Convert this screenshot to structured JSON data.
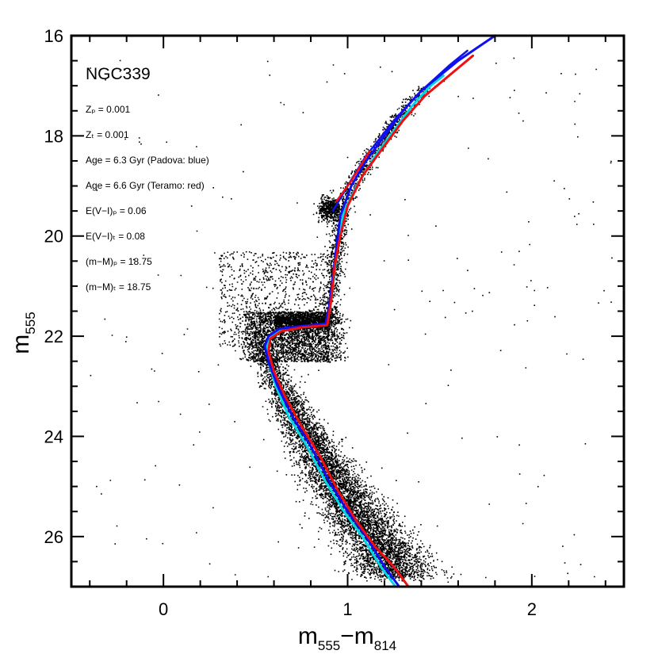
{
  "chart_data": {
    "type": "scatter",
    "title": "NGC339",
    "xlabel": {
      "main1": "m",
      "sub1": "555",
      "sep": "−m",
      "sub2": "814"
    },
    "ylabel": {
      "main": "m",
      "sub": "555"
    },
    "xlim": [
      -0.5,
      2.5
    ],
    "ylim": [
      27.0,
      16.0
    ],
    "y_inverted": true,
    "grid": false,
    "x_ticks": [
      {
        "value": 0,
        "label": "0"
      },
      {
        "value": 1,
        "label": "1"
      },
      {
        "value": 2,
        "label": "2"
      }
    ],
    "y_ticks": [
      {
        "value": 16,
        "label": "16"
      },
      {
        "value": 18,
        "label": "18"
      },
      {
        "value": 20,
        "label": "20"
      },
      {
        "value": 22,
        "label": "22"
      },
      {
        "value": 24,
        "label": "24"
      },
      {
        "value": 26,
        "label": "26"
      }
    ],
    "annotations": [
      "Zₚ = 0.001",
      "Zₜ = 0.001",
      "Age = 6.3 Gyr (Padova: blue)",
      "Age = 6.6 Gyr (Teramo: red)",
      "E(V−I)ₚ = 0.06",
      "E(V−I)ₜ = 0.08",
      "(m−M)ₚ = 18.75",
      "(m−M)ₜ = 18.75"
    ],
    "series": [
      {
        "name": "Padova",
        "color": "#1010ee",
        "points": [
          [
            1.28,
            27.0
          ],
          [
            1.2,
            26.6
          ],
          [
            1.1,
            26.0
          ],
          [
            1.0,
            25.5
          ],
          [
            0.9,
            24.9
          ],
          [
            0.8,
            24.2
          ],
          [
            0.7,
            23.6
          ],
          [
            0.62,
            23.0
          ],
          [
            0.57,
            22.5
          ],
          [
            0.55,
            22.2
          ],
          [
            0.57,
            22.0
          ],
          [
            0.63,
            21.85
          ],
          [
            0.75,
            21.8
          ],
          [
            0.88,
            21.75
          ],
          [
            0.9,
            21.4
          ],
          [
            0.92,
            20.8
          ],
          [
            0.94,
            20.2
          ],
          [
            0.96,
            19.6
          ],
          [
            1.02,
            19.0
          ],
          [
            1.1,
            18.5
          ],
          [
            1.2,
            18.0
          ],
          [
            1.3,
            17.5
          ],
          [
            1.4,
            17.1
          ],
          [
            1.5,
            16.8
          ],
          [
            1.6,
            16.5
          ],
          [
            1.7,
            16.25
          ],
          [
            1.8,
            16.0
          ]
        ]
      },
      {
        "name": "Teramo",
        "color": "#ee1010",
        "points": [
          [
            1.33,
            27.0
          ],
          [
            1.25,
            26.6
          ],
          [
            1.15,
            26.2
          ],
          [
            1.05,
            25.7
          ],
          [
            0.95,
            25.1
          ],
          [
            0.85,
            24.4
          ],
          [
            0.75,
            23.8
          ],
          [
            0.66,
            23.2
          ],
          [
            0.6,
            22.7
          ],
          [
            0.57,
            22.3
          ],
          [
            0.58,
            22.05
          ],
          [
            0.64,
            21.9
          ],
          [
            0.76,
            21.82
          ],
          [
            0.89,
            21.78
          ],
          [
            0.91,
            21.3
          ],
          [
            0.93,
            20.6
          ],
          [
            0.96,
            20.0
          ],
          [
            1.0,
            19.4
          ],
          [
            1.08,
            18.8
          ],
          [
            1.18,
            18.3
          ],
          [
            1.3,
            17.7
          ],
          [
            1.42,
            17.2
          ],
          [
            1.55,
            16.8
          ],
          [
            1.68,
            16.4
          ]
        ]
      },
      {
        "name": "",
        "color": "#00d8e8",
        "points": [
          [
            1.26,
            27.0
          ],
          [
            1.18,
            26.6
          ],
          [
            1.08,
            26.0
          ],
          [
            0.98,
            25.5
          ],
          [
            0.88,
            24.9
          ],
          [
            0.78,
            24.2
          ],
          [
            0.68,
            23.6
          ],
          [
            0.61,
            23.0
          ],
          [
            0.57,
            22.5
          ],
          [
            0.56,
            22.2
          ],
          [
            0.58,
            22.0
          ],
          [
            0.64,
            21.85
          ],
          [
            0.76,
            21.8
          ],
          [
            0.89,
            21.76
          ],
          [
            0.91,
            21.3
          ],
          [
            0.93,
            20.7
          ],
          [
            0.95,
            20.1
          ],
          [
            0.98,
            19.5
          ],
          [
            1.05,
            19.0
          ],
          [
            1.15,
            18.4
          ],
          [
            1.25,
            17.9
          ],
          [
            1.35,
            17.4
          ],
          [
            1.45,
            17.0
          ],
          [
            1.52,
            16.8
          ]
        ]
      }
    ],
    "rgb_branch": [
      {
        "color": "#1010ee",
        "points": [
          [
            0.92,
            19.5
          ],
          [
            1.0,
            19.0
          ],
          [
            1.1,
            18.4
          ],
          [
            1.25,
            17.7
          ],
          [
            1.4,
            17.1
          ],
          [
            1.55,
            16.6
          ],
          [
            1.65,
            16.3
          ]
        ]
      },
      {
        "color": "#ee1010",
        "points": [
          [
            0.94,
            19.3
          ],
          [
            1.02,
            18.9
          ],
          [
            1.12,
            18.3
          ]
        ]
      }
    ],
    "scatter_density_note": "dense cluster of stars along main sequence, turnoff, subgiant and red giant branch"
  }
}
